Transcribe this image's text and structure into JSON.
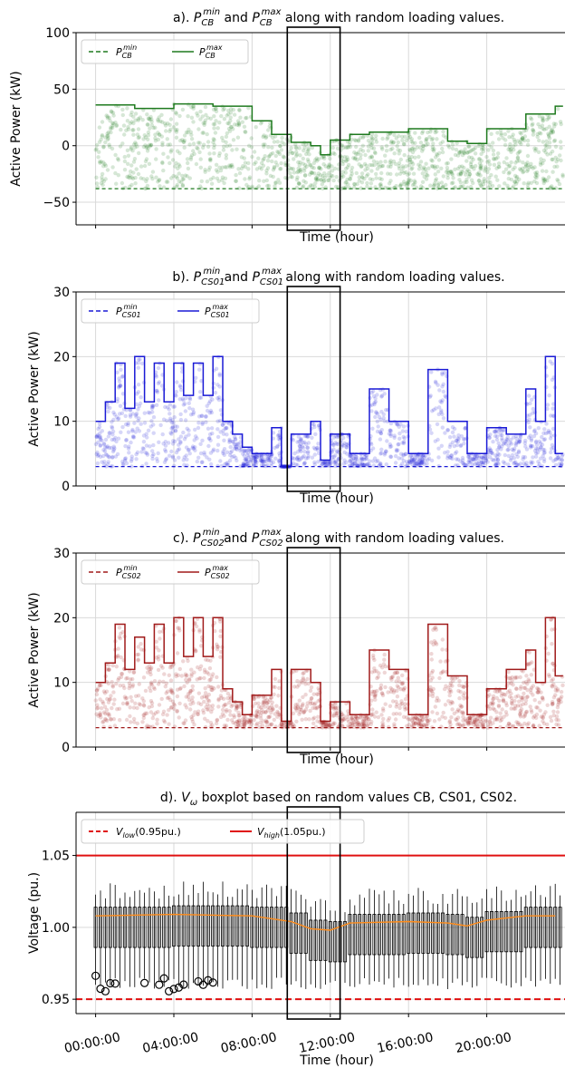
{
  "chart_data": [
    {
      "id": "a",
      "type": "line",
      "title": "a). P_CB^min and P_CB^max along with random loading values.",
      "title_parts": {
        "prefix": "a). ",
        "p1": "P",
        "p1_sub": "CB",
        "p1_sup": "min",
        "mid": " and ",
        "p2": "P",
        "p2_sub": "CB",
        "p2_sup": "max",
        "suffix": " along with random loading values."
      },
      "xlabel": "Time (hour)",
      "ylabel": "Active Power (kW)",
      "ylim": [
        -70,
        100
      ],
      "yticks": [
        "100",
        "50",
        "0",
        "−50"
      ],
      "ytick_values": [
        100,
        50,
        0,
        -50
      ],
      "color": "#1e7a1e",
      "legend": [
        {
          "name": "P",
          "sub": "CB",
          "sup": "min",
          "style": "dashed"
        },
        {
          "name": "P",
          "sub": "CB",
          "sup": "max",
          "style": "solid"
        }
      ],
      "series": [
        {
          "name": "P_CB^min",
          "value_constant": -38
        },
        {
          "name": "P_CB^max",
          "x_hours": [
            0,
            2,
            4,
            6,
            8,
            9,
            10,
            11,
            11.5,
            12,
            13,
            14,
            16,
            18,
            19,
            20,
            22,
            23.5
          ],
          "values": [
            36,
            33,
            37,
            35,
            22,
            10,
            3,
            0,
            -8,
            5,
            10,
            12,
            15,
            4,
            2,
            15,
            28,
            35
          ]
        }
      ]
    },
    {
      "id": "b",
      "type": "line",
      "title": "b). P_CS01^min and P_CS01^max along with random loading values.",
      "title_parts": {
        "prefix": "b). ",
        "p1": "P",
        "p1_sub": "CS01",
        "p1_sup": "min",
        "mid": " and ",
        "p2": "P",
        "p2_sub": "CS01",
        "p2_sup": "max",
        "suffix": " along with random loading values."
      },
      "xlabel": "Time (hour)",
      "ylabel": "Active Power (kW)",
      "ylim": [
        0,
        30
      ],
      "yticks": [
        "30",
        "20",
        "10",
        "0"
      ],
      "ytick_values": [
        30,
        20,
        10,
        0
      ],
      "color": "#1a1ad6",
      "legend": [
        {
          "name": "P",
          "sub": "CS01",
          "sup": "min",
          "style": "dashed"
        },
        {
          "name": "P",
          "sub": "CS01",
          "sup": "max",
          "style": "solid"
        }
      ],
      "series": [
        {
          "name": "P_CS01^min",
          "value_constant": 3
        },
        {
          "name": "P_CS01^max",
          "x_hours": [
            0,
            0.5,
            1,
            1.5,
            2,
            2.5,
            3,
            3.5,
            4,
            4.5,
            5,
            5.5,
            6,
            6.5,
            7,
            7.5,
            8,
            9,
            9.5,
            10,
            11,
            11.5,
            12,
            13,
            14,
            15,
            16,
            17,
            18,
            19,
            20,
            21,
            22,
            22.5,
            23,
            23.5
          ],
          "values": [
            10,
            13,
            19,
            12,
            20,
            13,
            19,
            13,
            19,
            14,
            19,
            14,
            20,
            10,
            8,
            6,
            5,
            9,
            3,
            8,
            10,
            4,
            8,
            5,
            15,
            10,
            5,
            18,
            10,
            5,
            9,
            8,
            15,
            10,
            20,
            5
          ]
        }
      ]
    },
    {
      "id": "c",
      "type": "line",
      "title": "c). P_CS02^min and P_CS02^max along with random loading values.",
      "title_parts": {
        "prefix": "c). ",
        "p1": "P",
        "p1_sub": "CS02",
        "p1_sup": "min",
        "mid": " and ",
        "p2": "P",
        "p2_sub": "CS02",
        "p2_sup": "max",
        "suffix": " along with random loading values."
      },
      "xlabel": "Time (hour)",
      "ylabel": "Active Power (kW)",
      "ylim": [
        0,
        30
      ],
      "yticks": [
        "30",
        "20",
        "10",
        "0"
      ],
      "ytick_values": [
        30,
        20,
        10,
        0
      ],
      "color": "#a01a1a",
      "legend": [
        {
          "name": "P",
          "sub": "CS02",
          "sup": "min",
          "style": "dashed"
        },
        {
          "name": "P",
          "sub": "CS02",
          "sup": "max",
          "style": "solid"
        }
      ],
      "series": [
        {
          "name": "P_CS02^min",
          "value_constant": 3
        },
        {
          "name": "P_CS02^max",
          "x_hours": [
            0,
            0.5,
            1,
            1.5,
            2,
            2.5,
            3,
            3.5,
            4,
            4.5,
            5,
            5.5,
            6,
            6.5,
            7,
            7.5,
            8,
            9,
            9.5,
            10,
            11,
            11.5,
            12,
            13,
            14,
            15,
            16,
            17,
            18,
            19,
            20,
            21,
            22,
            22.5,
            23,
            23.5
          ],
          "values": [
            10,
            13,
            19,
            12,
            17,
            13,
            19,
            13,
            20,
            14,
            20,
            14,
            20,
            9,
            7,
            5,
            8,
            12,
            4,
            12,
            10,
            4,
            7,
            5,
            15,
            12,
            5,
            19,
            11,
            5,
            9,
            12,
            15,
            10,
            20,
            11
          ]
        }
      ]
    },
    {
      "id": "d",
      "type": "box",
      "title": "d). V_ω boxplot based on random values CB, CS01, CS02.",
      "title_parts": {
        "prefix": "d). ",
        "v": "V",
        "v_sub": "ω",
        "suffix": " boxplot based on random values CB, CS01, CS02."
      },
      "xlabel": "Time (hour)",
      "ylabel": "Voltage (pu.)",
      "ylim": [
        0.94,
        1.08
      ],
      "yticks": [
        "1.05",
        "1.00",
        "0.95"
      ],
      "ytick_values": [
        1.05,
        1.0,
        0.95
      ],
      "xticks": [
        "00:00:00",
        "04:00:00",
        "08:00:00",
        "12:00:00",
        "16:00:00",
        "20:00:00"
      ],
      "xtick_hours": [
        0,
        4,
        8,
        12,
        16,
        20
      ],
      "legend": [
        {
          "name": "V",
          "sub": "low",
          "after": "(0.95pu.)",
          "style": "dashed",
          "color": "#e01010"
        },
        {
          "name": "V",
          "sub": "high",
          "after": "(1.05pu.)",
          "style": "solid",
          "color": "#e01010"
        }
      ],
      "lines": {
        "v_low": 0.95,
        "v_high": 1.05
      },
      "median_color": "#ff8c1a",
      "median": {
        "x_hours": [
          0,
          4,
          8,
          10,
          11,
          12,
          13,
          16,
          18,
          19,
          20,
          22,
          23.5
        ],
        "values": [
          1.008,
          1.009,
          1.008,
          1.004,
          0.999,
          0.998,
          1.003,
          1.004,
          1.003,
          1.001,
          1.005,
          1.008,
          1.008
        ]
      }
    }
  ],
  "x_range_hours": [
    -1,
    24
  ]
}
